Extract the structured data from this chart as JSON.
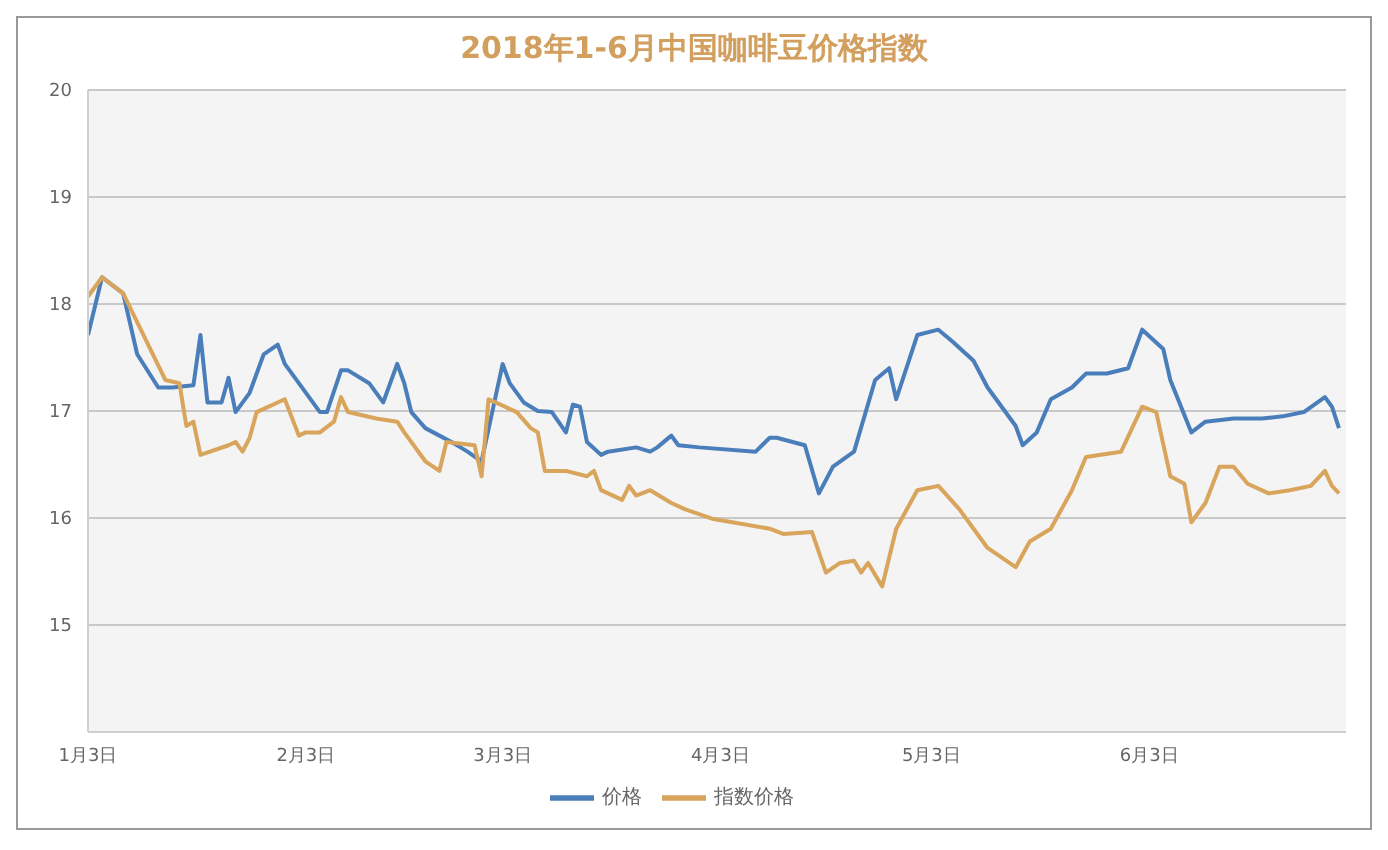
{
  "chart_data": {
    "type": "line",
    "title": "2018年1-6月中国咖啡豆价格指数",
    "xlim": [
      "2018-01-03",
      "2018-07-01"
    ],
    "xticks": [
      {
        "value": "2018-01-03",
        "label": "1月3日"
      },
      {
        "value": "2018-02-03",
        "label": "2月3日"
      },
      {
        "value": "2018-03-03",
        "label": "3月3日"
      },
      {
        "value": "2018-04-03",
        "label": "4月3日"
      },
      {
        "value": "2018-05-03",
        "label": "5月3日"
      },
      {
        "value": "2018-06-03",
        "label": "6月3日"
      }
    ],
    "ylim": [
      14,
      20
    ],
    "yticks": [
      15,
      16,
      17,
      18,
      19,
      20
    ],
    "grid": "y",
    "legend": "bottom",
    "marker": "none",
    "line_style": "solid",
    "series": [
      {
        "name": "价格",
        "color": "#4a7ebb",
        "x": [
          "2018-01-03",
          "2018-01-05",
          "2018-01-08",
          "2018-01-10",
          "2018-01-13",
          "2018-01-15",
          "2018-01-18",
          "2018-01-19",
          "2018-01-20",
          "2018-01-22",
          "2018-01-23",
          "2018-01-24",
          "2018-01-26",
          "2018-01-28",
          "2018-01-30",
          "2018-01-31",
          "2018-02-02",
          "2018-02-05",
          "2018-02-06",
          "2018-02-08",
          "2018-02-09",
          "2018-02-12",
          "2018-02-14",
          "2018-02-16",
          "2018-02-17",
          "2018-02-18",
          "2018-02-20",
          "2018-02-22",
          "2018-02-24",
          "2018-02-26",
          "2018-02-28",
          "2018-03-03",
          "2018-03-04",
          "2018-03-06",
          "2018-03-08",
          "2018-03-10",
          "2018-03-12",
          "2018-03-13",
          "2018-03-14",
          "2018-03-15",
          "2018-03-17",
          "2018-03-18",
          "2018-03-22",
          "2018-03-24",
          "2018-03-25",
          "2018-03-27",
          "2018-03-28",
          "2018-03-31",
          "2018-04-08",
          "2018-04-10",
          "2018-04-11",
          "2018-04-15",
          "2018-04-17",
          "2018-04-19",
          "2018-04-22",
          "2018-04-25",
          "2018-04-27",
          "2018-04-28",
          "2018-05-01",
          "2018-05-04",
          "2018-05-06",
          "2018-05-09",
          "2018-05-11",
          "2018-05-15",
          "2018-05-16",
          "2018-05-18",
          "2018-05-20",
          "2018-05-23",
          "2018-05-25",
          "2018-05-28",
          "2018-05-31",
          "2018-06-02",
          "2018-06-05",
          "2018-06-06",
          "2018-06-09",
          "2018-06-11",
          "2018-06-15",
          "2018-06-19",
          "2018-06-22",
          "2018-06-25",
          "2018-06-28",
          "2018-06-29",
          "2018-06-30"
        ],
        "values": [
          17.71,
          18.25,
          18.1,
          17.53,
          17.22,
          17.22,
          17.24,
          17.71,
          17.08,
          17.08,
          17.31,
          16.99,
          17.17,
          17.53,
          17.62,
          17.44,
          17.26,
          16.99,
          16.99,
          17.38,
          17.38,
          17.26,
          17.08,
          17.44,
          17.26,
          16.99,
          16.84,
          16.77,
          16.7,
          16.62,
          16.53,
          17.44,
          17.26,
          17.08,
          17.0,
          16.99,
          16.8,
          17.06,
          17.04,
          16.71,
          16.59,
          16.62,
          16.66,
          16.62,
          16.66,
          16.77,
          16.68,
          16.66,
          16.62,
          16.75,
          16.75,
          16.68,
          16.23,
          16.48,
          16.62,
          17.29,
          17.4,
          17.11,
          17.71,
          17.76,
          17.65,
          17.47,
          17.22,
          16.86,
          16.68,
          16.8,
          17.11,
          17.22,
          17.35,
          17.35,
          17.4,
          17.76,
          17.58,
          17.29,
          16.8,
          16.9,
          16.93,
          16.93,
          16.95,
          16.99,
          17.13,
          17.04,
          16.84
        ]
      },
      {
        "name": "指数价格",
        "color": "#d9a45b",
        "x": [
          "2018-01-03",
          "2018-01-05",
          "2018-01-08",
          "2018-01-14",
          "2018-01-16",
          "2018-01-17",
          "2018-01-18",
          "2018-01-19",
          "2018-01-23",
          "2018-01-24",
          "2018-01-25",
          "2018-01-26",
          "2018-01-27",
          "2018-01-31",
          "2018-02-02",
          "2018-02-03",
          "2018-02-05",
          "2018-02-07",
          "2018-02-08",
          "2018-02-09",
          "2018-02-13",
          "2018-02-16",
          "2018-02-17",
          "2018-02-20",
          "2018-02-22",
          "2018-02-23",
          "2018-02-27",
          "2018-02-28",
          "2018-03-01",
          "2018-03-05",
          "2018-03-07",
          "2018-03-08",
          "2018-03-09",
          "2018-03-12",
          "2018-03-15",
          "2018-03-16",
          "2018-03-17",
          "2018-03-20",
          "2018-03-21",
          "2018-03-22",
          "2018-03-24",
          "2018-03-27",
          "2018-03-29",
          "2018-04-02",
          "2018-04-10",
          "2018-04-12",
          "2018-04-16",
          "2018-04-18",
          "2018-04-20",
          "2018-04-22",
          "2018-04-23",
          "2018-04-24",
          "2018-04-26",
          "2018-04-28",
          "2018-05-01",
          "2018-05-04",
          "2018-05-07",
          "2018-05-09",
          "2018-05-11",
          "2018-05-15",
          "2018-05-17",
          "2018-05-20",
          "2018-05-23",
          "2018-05-25",
          "2018-05-30",
          "2018-06-02",
          "2018-06-04",
          "2018-06-06",
          "2018-06-08",
          "2018-06-09",
          "2018-06-11",
          "2018-06-13",
          "2018-06-15",
          "2018-06-17",
          "2018-06-20",
          "2018-06-23",
          "2018-06-26",
          "2018-06-28",
          "2018-06-29",
          "2018-06-30"
        ],
        "values": [
          18.07,
          18.25,
          18.1,
          17.29,
          17.26,
          16.86,
          16.9,
          16.59,
          16.68,
          16.71,
          16.62,
          16.75,
          16.99,
          17.11,
          16.77,
          16.8,
          16.8,
          16.9,
          17.13,
          16.99,
          16.93,
          16.9,
          16.8,
          16.53,
          16.44,
          16.71,
          16.68,
          16.39,
          17.11,
          16.99,
          16.84,
          16.8,
          16.44,
          16.44,
          16.39,
          16.44,
          16.26,
          16.17,
          16.3,
          16.21,
          16.26,
          16.14,
          16.08,
          15.99,
          15.9,
          15.85,
          15.87,
          15.49,
          15.58,
          15.6,
          15.49,
          15.58,
          15.36,
          15.9,
          16.26,
          16.3,
          16.08,
          15.9,
          15.72,
          15.54,
          15.78,
          15.9,
          16.26,
          16.57,
          16.62,
          17.04,
          16.99,
          16.39,
          16.32,
          15.96,
          16.14,
          16.48,
          16.48,
          16.32,
          16.23,
          16.26,
          16.3,
          16.44,
          16.3,
          16.23
        ]
      }
    ]
  }
}
